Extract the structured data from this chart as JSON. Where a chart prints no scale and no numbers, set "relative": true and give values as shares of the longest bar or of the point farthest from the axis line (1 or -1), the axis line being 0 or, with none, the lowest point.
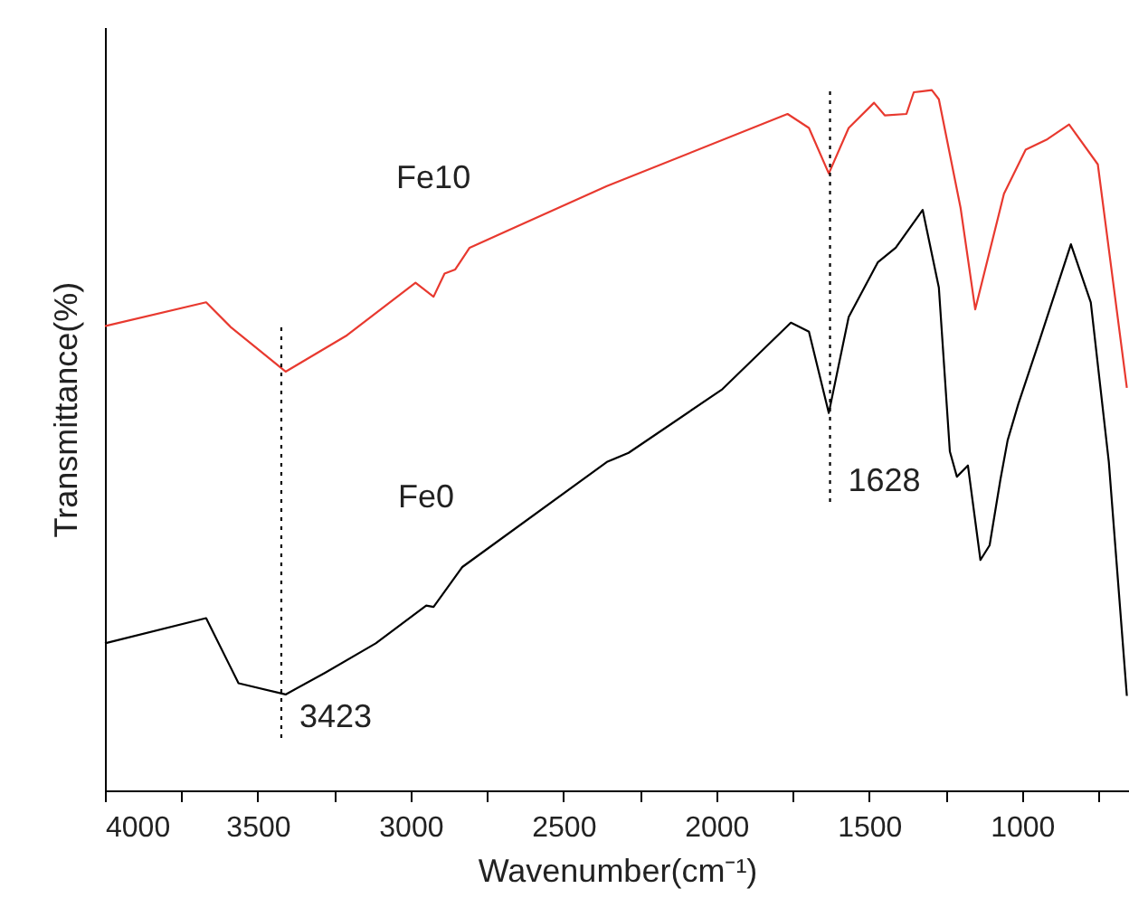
{
  "chart_data": {
    "type": "line",
    "relative": true,
    "xlabel": "Wavenumber(cm⁻¹)",
    "ylabel": "Transmittance(%)",
    "xlim": [
      4000,
      650
    ],
    "xticks": [
      4000,
      {
        "value": 3750,
        "label": null
      },
      3500,
      {
        "value": 3250,
        "label": null
      },
      3000,
      {
        "value": 2750,
        "label": null
      },
      2500,
      {
        "value": 2250,
        "label": null
      },
      2000,
      {
        "value": 1750,
        "label": null
      },
      1500,
      {
        "value": 1250,
        "label": null
      },
      1000,
      {
        "value": 750,
        "label": null
      }
    ],
    "grid": false,
    "marker": "none",
    "line_style": "solid",
    "series": [
      {
        "name": "Fe10",
        "color": "#e8392f",
        "x": [
          4000,
          3669,
          3587,
          3409,
          3208,
          2984,
          2925,
          2889,
          2854,
          2807,
          2358,
          1767,
          1697,
          1632,
          1567,
          1484,
          1449,
          1378,
          1354,
          1295,
          1272,
          1201,
          1153,
          1059,
          988,
          917,
          846,
          752,
          657
        ],
        "values": [
          0.663,
          0.697,
          0.661,
          0.598,
          0.65,
          0.725,
          0.705,
          0.738,
          0.744,
          0.775,
          0.863,
          0.966,
          0.946,
          0.881,
          0.946,
          0.982,
          0.964,
          0.966,
          0.997,
          1,
          0.987,
          0.832,
          0.687,
          0.852,
          0.915,
          0.93,
          0.951,
          0.894,
          0.575
        ]
      },
      {
        "name": "Fe0",
        "color": "#000000",
        "x": [
          4000,
          3669,
          3563,
          3409,
          3280,
          3114,
          2949,
          2925,
          2831,
          2358,
          2287,
          1980,
          1756,
          1697,
          1632,
          1567,
          1472,
          1413,
          1325,
          1272,
          1236,
          1213,
          1177,
          1136,
          1106,
          1071,
          1047,
          1012,
          941,
          840,
          775,
          716,
          657
        ],
        "values": [
          0.21,
          0.246,
          0.153,
          0.137,
          0.168,
          0.21,
          0.264,
          0.262,
          0.319,
          0.469,
          0.482,
          0.573,
          0.668,
          0.655,
          0.539,
          0.676,
          0.754,
          0.775,
          0.829,
          0.718,
          0.484,
          0.448,
          0.464,
          0.329,
          0.35,
          0.443,
          0.5,
          0.552,
          0.645,
          0.78,
          0.697,
          0.469,
          0.135
        ]
      },
      {
        "color": "#000000",
        "line_style": "dotted",
        "x": [
          3423,
          3423
        ],
        "values": [
          0.075,
          0.663
        ]
      },
      {
        "color": "#000000",
        "line_style": "dotted",
        "x": [
          1628,
          1628
        ],
        "values": [
          0.412,
          1.0
        ]
      }
    ],
    "annotations": [
      {
        "text": "3423",
        "x": 3423,
        "y": 0.075
      },
      {
        "text": "1628",
        "x": 1628,
        "y": 0.412
      }
    ]
  }
}
